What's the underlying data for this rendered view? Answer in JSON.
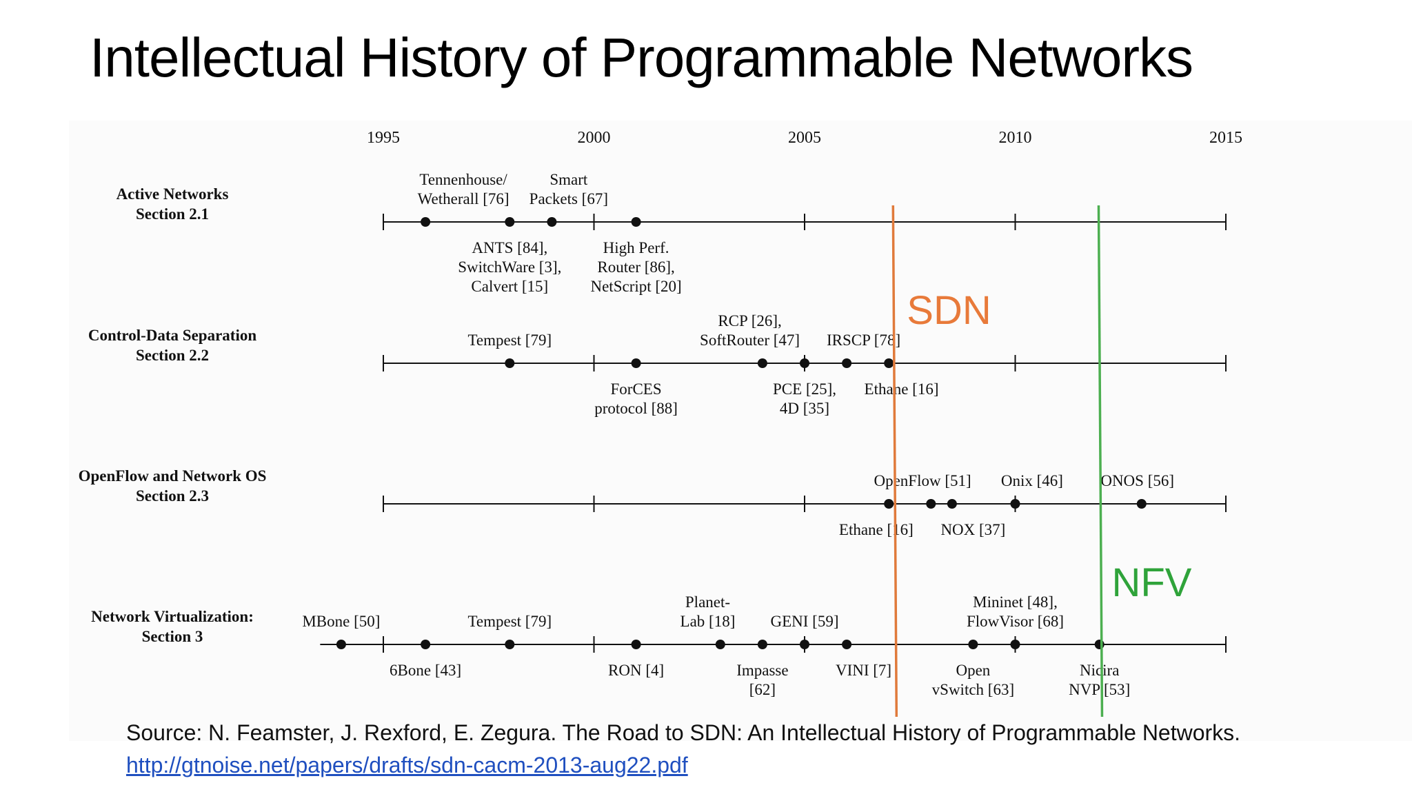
{
  "title": "Intellectual History of Programmable Networks",
  "colors": {
    "sdn": "#e87a3a",
    "sdn_line": "#e07a3b",
    "nfv": "#2fa33a",
    "nfv_line": "#4caf50",
    "link": "#1f4fbf"
  },
  "years": [
    "1995",
    "2000",
    "2005",
    "2010",
    "2015"
  ],
  "rows": [
    {
      "label_lines": [
        "Active Networks",
        "Section 2.1"
      ],
      "years": [
        1996,
        1998,
        1999,
        2001
      ],
      "labels": [
        {
          "lines": [
            "Tennenhouse/",
            "Wetherall [76]"
          ],
          "pos": "above",
          "year": 1996.9
        },
        {
          "lines": [
            "Smart",
            "Packets [67]"
          ],
          "pos": "above",
          "year": 1999.4
        },
        {
          "lines": [
            "ANTS [84],",
            "SwitchWare [3],",
            "Calvert [15]"
          ],
          "pos": "below",
          "year": 1998
        },
        {
          "lines": [
            "High Perf.",
            "Router [86],",
            "NetScript [20]"
          ],
          "pos": "below",
          "year": 2001
        }
      ]
    },
    {
      "label_lines": [
        "Control-Data Separation",
        "Section 2.2"
      ],
      "years": [
        1998,
        2001,
        2004,
        2005,
        2006,
        2007
      ],
      "labels": [
        {
          "lines": [
            "Tempest [79]"
          ],
          "pos": "above",
          "year": 1998
        },
        {
          "lines": [
            "RCP [26],",
            "SoftRouter [47]"
          ],
          "pos": "above",
          "year": 2003.7
        },
        {
          "lines": [
            "IRSCP [78]"
          ],
          "pos": "above",
          "year": 2006.4
        },
        {
          "lines": [
            "ForCES",
            "protocol [88]"
          ],
          "pos": "below",
          "year": 2001
        },
        {
          "lines": [
            "PCE [25],",
            "4D [35]"
          ],
          "pos": "below",
          "year": 2005
        },
        {
          "lines": [
            "Ethane [16]"
          ],
          "pos": "below",
          "year": 2007.3
        }
      ]
    },
    {
      "label_lines": [
        "OpenFlow and Network OS",
        "Section 2.3"
      ],
      "years": [
        2007,
        2008,
        2008.5,
        2010,
        2013
      ],
      "labels": [
        {
          "lines": [
            "OpenFlow [51]"
          ],
          "pos": "above",
          "year": 2007.8
        },
        {
          "lines": [
            "Onix [46]"
          ],
          "pos": "above",
          "year": 2010.4
        },
        {
          "lines": [
            "ONOS [56]"
          ],
          "pos": "above",
          "year": 2012.9
        },
        {
          "lines": [
            "Ethane [16]"
          ],
          "pos": "below",
          "year": 2006.7
        },
        {
          "lines": [
            "NOX [37]"
          ],
          "pos": "below",
          "year": 2009
        }
      ]
    },
    {
      "label_lines": [
        "Network Virtualization:",
        "Section 3"
      ],
      "years": [
        1994,
        1996,
        1998,
        2001,
        2003,
        2004,
        2005,
        2006,
        2009,
        2010,
        2012
      ],
      "labels": [
        {
          "lines": [
            "MBone [50]"
          ],
          "pos": "above",
          "year": 1994
        },
        {
          "lines": [
            "Tempest [79]"
          ],
          "pos": "above",
          "year": 1998
        },
        {
          "lines": [
            "Planet-",
            "Lab [18]"
          ],
          "pos": "above",
          "year": 2002.7
        },
        {
          "lines": [
            "GENI [59]"
          ],
          "pos": "above",
          "year": 2005
        },
        {
          "lines": [
            "Mininet [48],",
            "FlowVisor [68]"
          ],
          "pos": "above",
          "year": 2010
        },
        {
          "lines": [
            "6Bone [43]"
          ],
          "pos": "below",
          "year": 1996
        },
        {
          "lines": [
            "RON [4]"
          ],
          "pos": "below",
          "year": 2001
        },
        {
          "lines": [
            "Impasse",
            "[62]"
          ],
          "pos": "below",
          "year": 2004
        },
        {
          "lines": [
            "VINI [7]"
          ],
          "pos": "below",
          "year": 2006.4
        },
        {
          "lines": [
            "Open",
            "vSwitch [63]"
          ],
          "pos": "below",
          "year": 2009
        },
        {
          "lines": [
            "Nicira",
            "NVP [53]"
          ],
          "pos": "below",
          "year": 2012
        }
      ]
    }
  ],
  "markers": [
    {
      "label": "SDN",
      "year": 2007.1,
      "color_key": "sdn"
    },
    {
      "label": "NFV",
      "year": 2011.98,
      "color_key": "nfv"
    }
  ],
  "source": {
    "text": "Source:  N. Feamster, J. Rexford, E. Zegura. The Road to SDN: An Intellectual History of Programmable Networks.",
    "link": "http://gtnoise.net/papers/drafts/sdn-cacm-2013-aug22.pdf"
  }
}
